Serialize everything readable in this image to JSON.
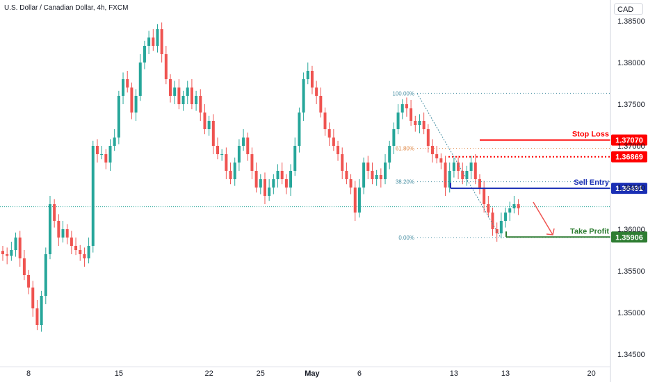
{
  "header": {
    "symbol_title": "U.S. Dollar / Canadian Dollar, 4h, FXCM",
    "currency": "CAD"
  },
  "colors": {
    "up": "#26a69a",
    "down": "#ef5350",
    "stop": "#ff0000",
    "entry": "#1a2fb5",
    "take": "#2e7d32",
    "fib": "#4a90a4",
    "fib618": "#e08a4a"
  },
  "chart_data": {
    "type": "candlestick",
    "x_ticks": [
      {
        "label": "8",
        "index": 6
      },
      {
        "label": "15",
        "index": 27
      },
      {
        "label": "22",
        "index": 48
      },
      {
        "label": "25",
        "index": 60
      },
      {
        "label": "May",
        "index": 72,
        "bold": true
      },
      {
        "label": "6",
        "index": 83
      },
      {
        "label": "13",
        "index": 105
      },
      {
        "label": "13",
        "index": 117
      },
      {
        "label": "20",
        "index": 137
      }
    ],
    "y_ticks": [
      "1.38500",
      "1.38000",
      "1.37500",
      "1.37000",
      "1.36500",
      "1.36000",
      "1.35500",
      "1.35000",
      "1.34500"
    ],
    "ylim": [
      1.3435,
      1.3875
    ],
    "closes": [
      1.357,
      1.3568,
      1.3575,
      1.359,
      1.3565,
      1.3545,
      1.353,
      1.3505,
      1.3485,
      1.352,
      1.357,
      1.363,
      1.361,
      1.359,
      1.36,
      1.359,
      1.358,
      1.3575,
      1.357,
      1.3565,
      1.358,
      1.37,
      1.369,
      1.369,
      1.368,
      1.37,
      1.371,
      1.376,
      1.378,
      1.377,
      1.374,
      1.376,
      1.38,
      1.382,
      1.383,
      1.382,
      1.384,
      1.381,
      1.378,
      1.376,
      1.377,
      1.375,
      1.376,
      1.377,
      1.375,
      1.376,
      1.374,
      1.372,
      1.373,
      1.37,
      1.369,
      1.369,
      1.367,
      1.366,
      1.368,
      1.37,
      1.371,
      1.369,
      1.367,
      1.365,
      1.366,
      1.364,
      1.365,
      1.366,
      1.367,
      1.366,
      1.365,
      1.367,
      1.37,
      1.374,
      1.378,
      1.379,
      1.377,
      1.376,
      1.374,
      1.372,
      1.371,
      1.37,
      1.369,
      1.367,
      1.366,
      1.365,
      1.362,
      1.365,
      1.368,
      1.367,
      1.366,
      1.3665,
      1.366,
      1.368,
      1.37,
      1.372,
      1.374,
      1.375,
      1.3745,
      1.373,
      1.3725,
      1.373,
      1.372,
      1.37,
      1.369,
      1.3685,
      1.368,
      1.365,
      1.367,
      1.368,
      1.367,
      1.366,
      1.367,
      1.368,
      1.366,
      1.365,
      1.363,
      1.362,
      1.36,
      1.3595,
      1.361,
      1.362,
      1.3625,
      1.363,
      1.3625
    ],
    "key_levels": [
      {
        "name": "Stop Loss",
        "value": "1.37070",
        "price": 1.3707
      },
      {
        "name": "",
        "value": "1.36869",
        "price": 1.36869
      },
      {
        "name": "Sell Entry",
        "value": "1.36491",
        "price": 1.36491
      },
      {
        "name": "Take Profit",
        "value": "1.35906",
        "price": 1.35906
      }
    ],
    "fib_levels": [
      {
        "label": "100.00%",
        "price": 1.3763
      },
      {
        "label": "61.80%",
        "price": 1.3697
      },
      {
        "label": "38.20%",
        "price": 1.3657
      },
      {
        "label": "0.00%",
        "price": 1.359
      }
    ],
    "current_price": 1.3627
  }
}
